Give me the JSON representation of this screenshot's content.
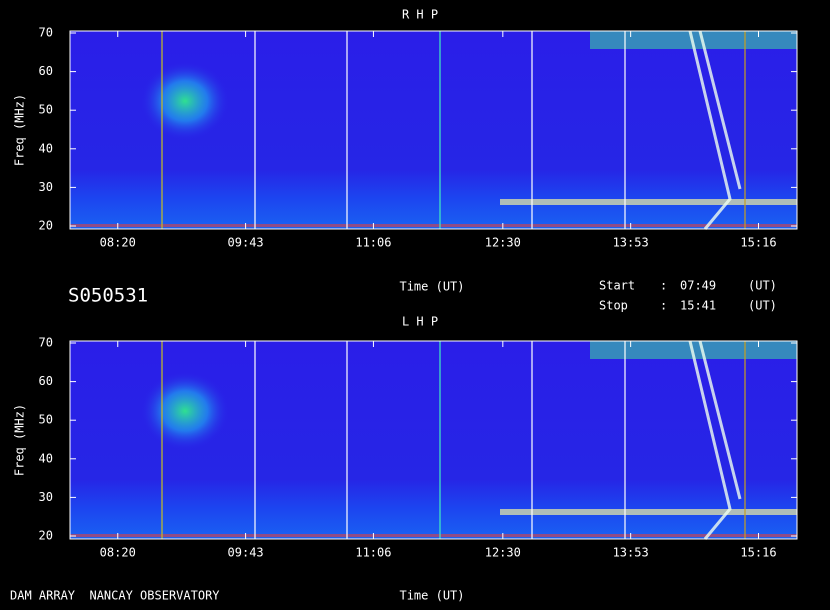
{
  "header": {
    "title": "S050531",
    "rows": [
      [
        "Start",
        ":",
        "07:49",
        "(UT)"
      ],
      [
        "Stop",
        ":",
        "15:41",
        "(UT)"
      ]
    ]
  },
  "footer": {
    "text": "DAM ARRAY  NANCAY OBSERVATORY"
  },
  "chart_data": [
    {
      "type": "spectrogram",
      "title": "R H P",
      "y_label": "Freq (MHz)",
      "x_label": "Time (UT)",
      "xlim": [
        "07:49",
        "15:41"
      ],
      "xticks": [
        "08:20",
        "09:43",
        "11:06",
        "12:30",
        "13:53",
        "15:16"
      ],
      "ylim": [
        20,
        70
      ],
      "yticks": [
        20,
        30,
        40,
        50,
        60,
        70
      ]
    },
    {
      "type": "spectrogram",
      "title": "L H P",
      "y_label": "Freq (MHz)",
      "x_label": "Time (UT)",
      "xlim": [
        "07:49",
        "15:41"
      ],
      "xticks": [
        "08:20",
        "09:43",
        "11:06",
        "12:30",
        "13:53",
        "15:16"
      ],
      "ylim": [
        20,
        70
      ],
      "yticks": [
        20,
        30,
        40,
        50,
        60,
        70
      ]
    }
  ]
}
